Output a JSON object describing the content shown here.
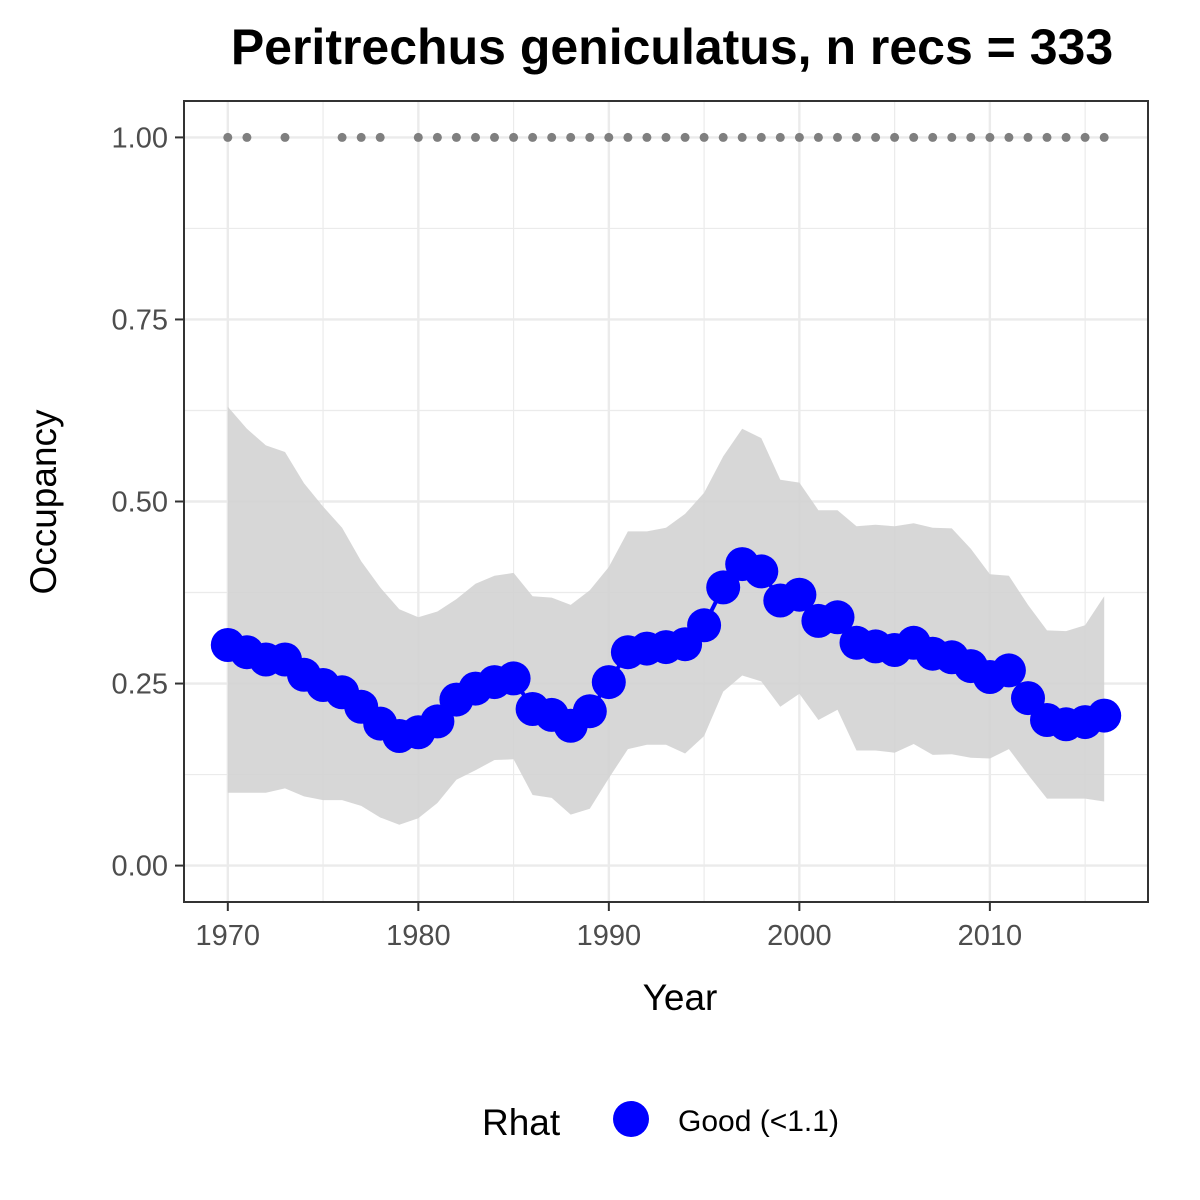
{
  "chart_data": {
    "type": "line",
    "title": "Peritrechus geniculatus, n recs = 333",
    "xlabel": "Year",
    "ylabel": "Occupancy",
    "xlim": [
      1967.7,
      2018.3
    ],
    "ylim": [
      -0.05,
      1.05
    ],
    "x_ticks": [
      1970,
      1980,
      1990,
      2000,
      2010
    ],
    "x_tick_labels": [
      "1970",
      "1980",
      "1990",
      "2000",
      "2010"
    ],
    "y_ticks": [
      0,
      0.25,
      0.5,
      0.75,
      1.0
    ],
    "y_tick_labels": [
      "0.00",
      "0.25",
      "0.50",
      "0.75",
      "1.00"
    ],
    "grid": true,
    "legend": {
      "title": "Rhat",
      "position": "bottom",
      "entries": [
        {
          "label": "Good (<1.1)",
          "color": "#0000ff"
        }
      ]
    },
    "colors": {
      "series": "#0000ff",
      "ribbon": "#d3d3d3",
      "records": "#7f7f7f",
      "grid": "#ebebeb",
      "border": "#333333"
    },
    "series": [
      {
        "name": "Good (<1.1)",
        "x": [
          1970,
          1971,
          1972,
          1973,
          1974,
          1975,
          1976,
          1977,
          1978,
          1979,
          1980,
          1981,
          1982,
          1983,
          1984,
          1985,
          1986,
          1987,
          1988,
          1989,
          1990,
          1991,
          1992,
          1993,
          1994,
          1995,
          1996,
          1997,
          1998,
          1999,
          2000,
          2001,
          2002,
          2003,
          2004,
          2005,
          2006,
          2007,
          2008,
          2009,
          2010,
          2011,
          2012,
          2013,
          2014,
          2015,
          2016
        ],
        "values": [
          0.303,
          0.293,
          0.283,
          0.283,
          0.262,
          0.248,
          0.238,
          0.218,
          0.195,
          0.178,
          0.183,
          0.198,
          0.228,
          0.243,
          0.252,
          0.257,
          0.215,
          0.207,
          0.192,
          0.212,
          0.252,
          0.293,
          0.298,
          0.3,
          0.304,
          0.33,
          0.382,
          0.414,
          0.404,
          0.364,
          0.372,
          0.336,
          0.341,
          0.306,
          0.301,
          0.296,
          0.306,
          0.291,
          0.286,
          0.274,
          0.259,
          0.268,
          0.23,
          0.2,
          0.194,
          0.197,
          0.206
        ],
        "lower": [
          0.1,
          0.1,
          0.1,
          0.106,
          0.095,
          0.09,
          0.09,
          0.082,
          0.066,
          0.056,
          0.065,
          0.086,
          0.118,
          0.131,
          0.145,
          0.146,
          0.097,
          0.093,
          0.07,
          0.078,
          0.12,
          0.16,
          0.166,
          0.166,
          0.154,
          0.178,
          0.239,
          0.261,
          0.253,
          0.218,
          0.236,
          0.2,
          0.214,
          0.158,
          0.158,
          0.155,
          0.167,
          0.152,
          0.153,
          0.148,
          0.147,
          0.16,
          0.125,
          0.092,
          0.092,
          0.092,
          0.088
        ],
        "upper": [
          0.63,
          0.6,
          0.577,
          0.568,
          0.525,
          0.493,
          0.464,
          0.418,
          0.382,
          0.352,
          0.341,
          0.349,
          0.366,
          0.387,
          0.398,
          0.402,
          0.37,
          0.368,
          0.358,
          0.378,
          0.41,
          0.459,
          0.459,
          0.464,
          0.483,
          0.512,
          0.562,
          0.6,
          0.587,
          0.53,
          0.526,
          0.488,
          0.488,
          0.466,
          0.468,
          0.466,
          0.47,
          0.464,
          0.463,
          0.435,
          0.4,
          0.398,
          0.358,
          0.323,
          0.322,
          0.33,
          0.37
        ]
      }
    ],
    "records": {
      "y": 1.0,
      "x": [
        1970,
        1971,
        1973,
        1976,
        1977,
        1978,
        1980,
        1981,
        1982,
        1983,
        1984,
        1985,
        1986,
        1987,
        1988,
        1989,
        1990,
        1991,
        1992,
        1993,
        1994,
        1995,
        1996,
        1997,
        1998,
        1999,
        2000,
        2001,
        2002,
        2003,
        2004,
        2005,
        2006,
        2007,
        2008,
        2009,
        2010,
        2011,
        2012,
        2013,
        2014,
        2015,
        2016
      ]
    }
  }
}
